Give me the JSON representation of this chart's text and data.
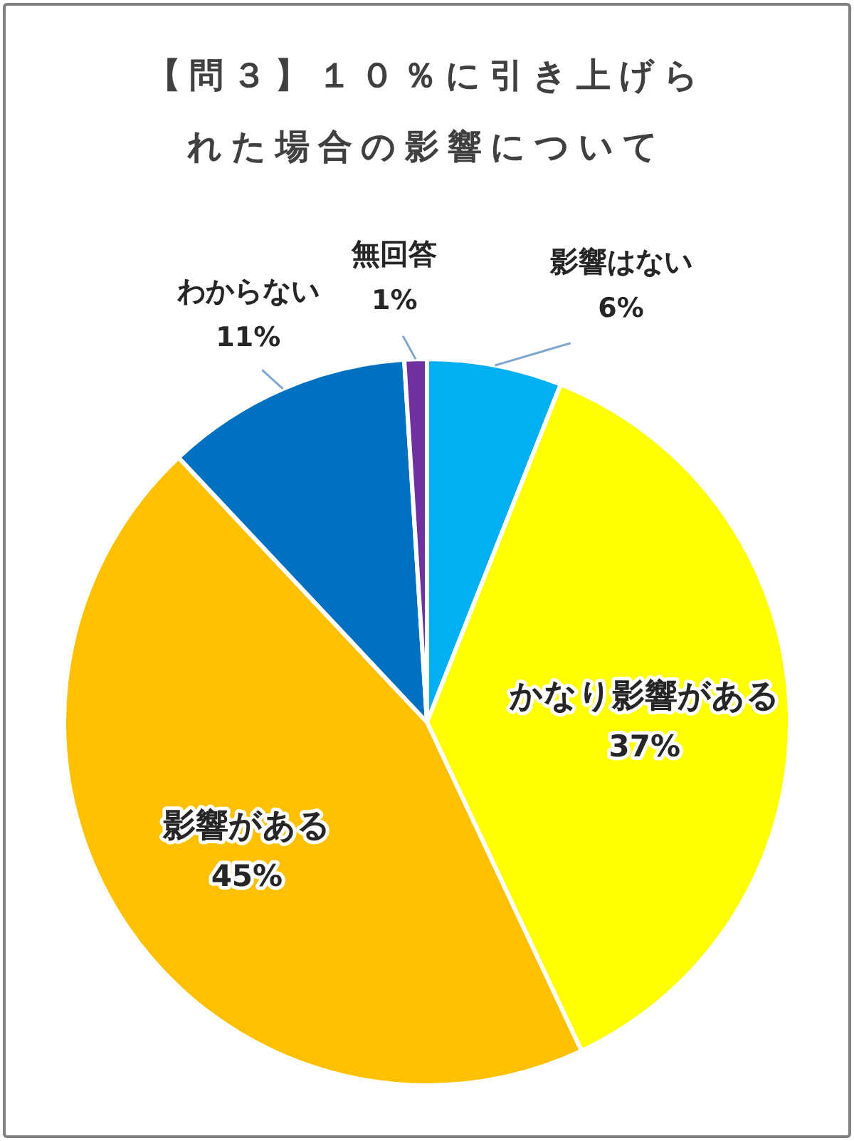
{
  "chart_data": {
    "type": "pie",
    "title": "【問３】１０％に引き上げられた場合の影響について",
    "categories": [
      "影響はない",
      "かなり影響がある",
      "影響がある",
      "わからない",
      "無回答"
    ],
    "values": [
      6,
      37,
      45,
      11,
      1
    ],
    "value_labels": [
      "6%",
      "37%",
      "45%",
      "11%",
      "1%"
    ],
    "colors": [
      "#00b0f0",
      "#ffff00",
      "#ffc000",
      "#0070c0",
      "#7030a0"
    ]
  }
}
